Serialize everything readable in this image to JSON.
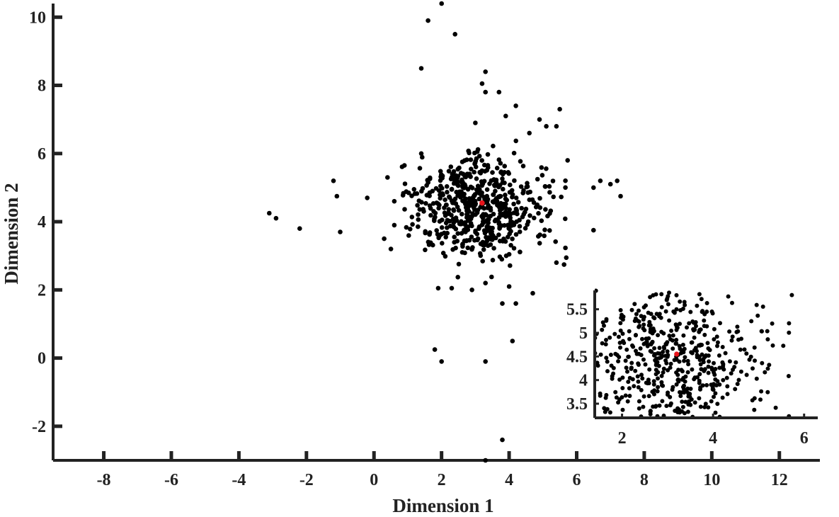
{
  "chart_data": [
    {
      "type": "scatter",
      "title": "",
      "xlabel": "Dimension 1",
      "ylabel": "Dimension 2",
      "xlim": [
        -9.5,
        13.2
      ],
      "ylim": [
        -3,
        10.4
      ],
      "xticks": [
        -8,
        -6,
        -4,
        -2,
        0,
        2,
        4,
        6,
        8,
        10,
        12
      ],
      "yticks": [
        -2,
        0,
        2,
        4,
        6,
        8,
        10
      ],
      "grid": false,
      "point_color": "#000000",
      "highlight_color": "#e8141b",
      "highlight": {
        "x": 3.2,
        "y": 4.55
      },
      "outliers": [
        [
          2.0,
          10.4
        ],
        [
          1.6,
          9.9
        ],
        [
          2.4,
          9.5
        ],
        [
          1.4,
          8.5
        ],
        [
          3.3,
          8.4
        ],
        [
          3.2,
          8.05
        ],
        [
          3.3,
          7.8
        ],
        [
          3.7,
          7.8
        ],
        [
          4.2,
          7.4
        ],
        [
          3.9,
          7.1
        ],
        [
          4.9,
          7.0
        ],
        [
          5.5,
          7.3
        ],
        [
          5.1,
          6.8
        ],
        [
          5.4,
          6.8
        ],
        [
          4.6,
          6.6
        ],
        [
          3.0,
          6.9
        ],
        [
          -1.2,
          5.2
        ],
        [
          -1.1,
          4.75
        ],
        [
          -0.2,
          4.7
        ],
        [
          0.4,
          5.3
        ],
        [
          0.6,
          4.6
        ],
        [
          -3.1,
          4.25
        ],
        [
          -2.9,
          4.1
        ],
        [
          -2.2,
          3.8
        ],
        [
          -1.0,
          3.7
        ],
        [
          0.3,
          3.5
        ],
        [
          0.5,
          3.2
        ],
        [
          0.6,
          3.9
        ],
        [
          0.9,
          5.65
        ],
        [
          1.4,
          6.0
        ],
        [
          6.5,
          5.0
        ],
        [
          6.7,
          5.2
        ],
        [
          7.0,
          5.1
        ],
        [
          7.2,
          5.2
        ],
        [
          7.3,
          4.75
        ],
        [
          6.5,
          3.75
        ],
        [
          5.4,
          2.8
        ],
        [
          4.7,
          1.9
        ],
        [
          4.2,
          1.6
        ],
        [
          4.0,
          2.1
        ],
        [
          3.8,
          1.6
        ],
        [
          4.1,
          0.5
        ],
        [
          1.8,
          0.25
        ],
        [
          2.0,
          -0.1
        ],
        [
          3.3,
          -0.1
        ],
        [
          3.8,
          -2.4
        ],
        [
          3.3,
          -3.0
        ],
        [
          1.9,
          2.05
        ],
        [
          2.3,
          2.05
        ],
        [
          2.9,
          2.0
        ],
        [
          3.3,
          2.2
        ]
      ],
      "cluster": {
        "n": 560,
        "center": [
          3.0,
          4.45
        ],
        "sd": [
          1.05,
          0.72
        ],
        "x_range": [
          0.8,
          6.4
        ],
        "y_range": [
          2.2,
          6.4
        ]
      }
    },
    {
      "type": "scatter",
      "title": "",
      "xlabel": "",
      "ylabel": "",
      "xlim": [
        1.4,
        6.3
      ],
      "ylim": [
        3.2,
        5.9
      ],
      "xticks": [
        2,
        4,
        6
      ],
      "yticks": [
        3.5,
        4,
        4.5,
        5,
        5.5
      ],
      "grid": false,
      "inset_of": 0,
      "placement": "bottom-right"
    }
  ]
}
